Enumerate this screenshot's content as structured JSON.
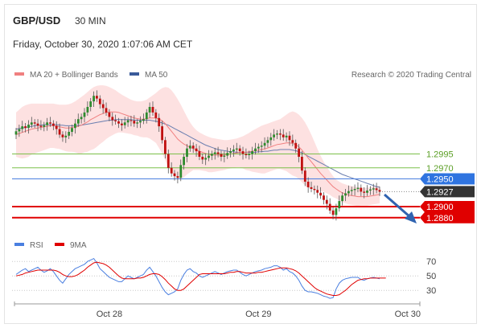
{
  "header": {
    "symbol": "GBP/USD",
    "interval": "30 MIN",
    "datetime": "Friday, October 30, 2020 1:07:06 AM CET",
    "credit": "Research © 2020 Trading Central"
  },
  "legend": {
    "ma20_label": "MA 20 + Bollinger Bands",
    "ma50_label": "MA 50",
    "rsi_label": "RSI",
    "rsi9_label": "9MA"
  },
  "colors": {
    "up": "#2e8b2e",
    "down": "#c01010",
    "ma20": "#f08080",
    "ma50": "#6b7fb0",
    "band": "#fddcdc",
    "support": "#e00000",
    "resistance": "#7cc04a",
    "pivot": "#4a7fe0",
    "current": "#333333",
    "rsi": "#4a7fe0",
    "rsi9": "#e00000"
  },
  "chart_data": {
    "type": "candlestick",
    "y_range": [
      1.2855,
      1.3125
    ],
    "x_labels": [
      {
        "label": "Oct 28",
        "index": 30
      },
      {
        "label": "Oct 29",
        "index": 78
      },
      {
        "label": "Oct 30",
        "index": 126
      }
    ],
    "levels": [
      {
        "value": 1.2995,
        "label": "1.2995",
        "kind": "resistance",
        "line": "thin"
      },
      {
        "value": 1.297,
        "label": "1.2970",
        "kind": "resistance",
        "line": "thin"
      },
      {
        "value": 1.295,
        "label": "1.2950",
        "kind": "pivot",
        "line": "thin"
      },
      {
        "value": 1.2927,
        "label": "1.2927",
        "kind": "current",
        "line": "dotted"
      },
      {
        "value": 1.29,
        "label": "1.2900",
        "kind": "support",
        "line": "thick"
      },
      {
        "value": 1.288,
        "label": "1.2880",
        "kind": "support",
        "line": "thick"
      }
    ],
    "closes": [
      1.3036,
      1.304,
      1.3045,
      1.3042,
      1.3048,
      1.3052,
      1.305,
      1.3046,
      1.3044,
      1.3047,
      1.3052,
      1.305,
      1.3046,
      1.304,
      1.303,
      1.3025,
      1.3028,
      1.3035,
      1.3042,
      1.305,
      1.3058,
      1.3062,
      1.307,
      1.308,
      1.309,
      1.31,
      1.3095,
      1.3085,
      1.3078,
      1.307,
      1.3062,
      1.3056,
      1.3054,
      1.305,
      1.3047,
      1.3052,
      1.3056,
      1.3055,
      1.305,
      1.3052,
      1.3055,
      1.3058,
      1.307,
      1.308,
      1.307,
      1.306,
      1.3045,
      1.302,
      1.2995,
      1.297,
      1.296,
      1.2955,
      1.2952,
      1.2975,
      1.299,
      1.3005,
      1.301,
      1.3005,
      1.3,
      1.299,
      1.2985,
      1.2988,
      1.2992,
      1.2995,
      1.2998,
      1.2995,
      1.299,
      1.2992,
      1.2997,
      1.3,
      1.3003,
      1.3005,
      1.3,
      1.2995,
      1.2993,
      1.2995,
      1.3,
      1.3005,
      1.3008,
      1.301,
      1.3015,
      1.302,
      1.3025,
      1.303,
      1.3032,
      1.303,
      1.3025,
      1.3028,
      1.302,
      1.3015,
      1.3005,
      1.299,
      1.2965,
      1.2945,
      1.2935,
      1.2932,
      1.293,
      1.2925,
      1.292,
      1.2912,
      1.2905,
      1.2893,
      1.2885,
      1.2897,
      1.291,
      1.292,
      1.2924,
      1.2928,
      1.293,
      1.2932,
      1.2934,
      1.2927,
      1.2925,
      1.2929,
      1.2931,
      1.2933,
      1.293,
      1.2927
    ],
    "ma20": [
      1.303,
      1.3032,
      1.3034,
      1.3036,
      1.3038,
      1.304,
      1.3041,
      1.3042,
      1.3043,
      1.3044,
      1.3045,
      1.3046,
      1.3046,
      1.3045,
      1.3044,
      1.3043,
      1.3042,
      1.3042,
      1.3043,
      1.3044,
      1.3045,
      1.3047,
      1.305,
      1.3053,
      1.3057,
      1.306,
      1.3063,
      1.3066,
      1.3068,
      1.307,
      1.3071,
      1.3071,
      1.3071,
      1.307,
      1.3068,
      1.3066,
      1.3064,
      1.3062,
      1.306,
      1.3059,
      1.3058,
      1.3058,
      1.3059,
      1.306,
      1.306,
      1.306,
      1.3058,
      1.3055,
      1.305,
      1.3043,
      1.3036,
      1.3029,
      1.3022,
      1.3017,
      1.3013,
      1.301,
      1.3007,
      1.3005,
      1.3002,
      1.3,
      1.2998,
      1.2996,
      1.2994,
      1.2993,
      1.2993,
      1.2993,
      1.2993,
      1.2993,
      1.2994,
      1.2995,
      1.2996,
      1.2997,
      1.2998,
      1.2998,
      1.2998,
      1.2999,
      1.3,
      1.3001,
      1.3002,
      1.3003,
      1.3004,
      1.3006,
      1.3008,
      1.301,
      1.3012,
      1.3013,
      1.3014,
      1.3015,
      1.3015,
      1.3014,
      1.3012,
      1.3008,
      1.3002,
      1.2995,
      1.2988,
      1.2981,
      1.2974,
      1.2967,
      1.296,
      1.2954,
      1.2948,
      1.2942,
      1.2936,
      1.2932,
      1.2928,
      1.2925,
      1.2923,
      1.2921,
      1.292,
      1.2919,
      1.2918,
      1.2918,
      1.2918,
      1.2918,
      1.2919,
      1.292,
      1.2921,
      1.2922
    ],
    "ma50": [
      1.304,
      1.3041,
      1.3042,
      1.3043,
      1.3044,
      1.3045,
      1.3046,
      1.3047,
      1.3047,
      1.3048,
      1.3048,
      1.3048,
      1.3048,
      1.3048,
      1.3047,
      1.3047,
      1.3046,
      1.3046,
      1.3046,
      1.3046,
      1.3047,
      1.3047,
      1.3048,
      1.3049,
      1.305,
      1.3051,
      1.3052,
      1.3053,
      1.3054,
      1.3055,
      1.3056,
      1.3056,
      1.3057,
      1.3057,
      1.3057,
      1.3057,
      1.3057,
      1.3057,
      1.3056,
      1.3056,
      1.3056,
      1.3056,
      1.3056,
      1.3056,
      1.3055,
      1.3054,
      1.3053,
      1.3051,
      1.3049,
      1.3047,
      1.3044,
      1.3041,
      1.3038,
      1.3035,
      1.3032,
      1.3029,
      1.3026,
      1.3023,
      1.302,
      1.3017,
      1.3014,
      1.3011,
      1.3009,
      1.3007,
      1.3005,
      1.3003,
      1.3002,
      1.3001,
      1.3,
      1.2999,
      1.2999,
      1.2998,
      1.2998,
      1.2998,
      1.2998,
      1.2998,
      1.2998,
      1.2998,
      1.2999,
      1.2999,
      1.3,
      1.3,
      1.3001,
      1.3002,
      1.3002,
      1.3003,
      1.3003,
      1.3003,
      1.3003,
      1.3002,
      1.3001,
      1.2999,
      1.2997,
      1.2994,
      1.2991,
      1.2988,
      1.2985,
      1.2982,
      1.2979,
      1.2976,
      1.2973,
      1.297,
      1.2967,
      1.2964,
      1.2961,
      1.2958,
      1.2956,
      1.2954,
      1.2952,
      1.295,
      1.2948,
      1.2946,
      1.2944,
      1.2942,
      1.294,
      1.2938,
      1.2936,
      1.2935
    ],
    "bb_upper": [
      1.307,
      1.3075,
      1.308,
      1.3083,
      1.3085,
      1.3086,
      1.3086,
      1.3086,
      1.3086,
      1.3086,
      1.3086,
      1.3086,
      1.3086,
      1.3085,
      1.3084,
      1.3084,
      1.3084,
      1.3085,
      1.3087,
      1.309,
      1.3094,
      1.3098,
      1.3102,
      1.3107,
      1.3112,
      1.3116,
      1.3118,
      1.3119,
      1.3119,
      1.3118,
      1.3116,
      1.3113,
      1.311,
      1.3106,
      1.3102,
      1.3099,
      1.3096,
      1.3093,
      1.3091,
      1.309,
      1.309,
      1.3091,
      1.3093,
      1.3097,
      1.3101,
      1.3105,
      1.311,
      1.3114,
      1.3116,
      1.3115,
      1.311,
      1.3103,
      1.3094,
      1.3084,
      1.3073,
      1.3062,
      1.3052,
      1.3044,
      1.3038,
      1.3034,
      1.3031,
      1.3028,
      1.3026,
      1.3024,
      1.3023,
      1.3022,
      1.3021,
      1.302,
      1.302,
      1.3021,
      1.3022,
      1.3023,
      1.3025,
      1.3027,
      1.303,
      1.3033,
      1.3037,
      1.304,
      1.3043,
      1.3046,
      1.3048,
      1.305,
      1.3052,
      1.3054,
      1.3056,
      1.3058,
      1.3062,
      1.3066,
      1.307,
      1.3072,
      1.307,
      1.3066,
      1.306,
      1.3052,
      1.3042,
      1.303,
      1.3017,
      1.3004,
      1.2992,
      1.2981,
      1.2972,
      1.2963,
      1.2955,
      1.2949,
      1.2945,
      1.2942,
      1.294,
      1.2938,
      1.2937,
      1.2936,
      1.2935,
      1.2934,
      1.2934,
      1.2934,
      1.2935,
      1.2936,
      1.2937,
      1.2938
    ],
    "bb_lower": [
      1.299,
      1.2988,
      1.2987,
      1.2988,
      1.299,
      1.2994,
      1.2996,
      1.2998,
      1.3,
      1.3002,
      1.3004,
      1.3006,
      1.3006,
      1.3005,
      1.3004,
      1.3002,
      1.3,
      1.2999,
      1.2999,
      1.2998,
      1.2996,
      1.2996,
      1.2998,
      1.2999,
      1.3002,
      1.3004,
      1.3008,
      1.3013,
      1.3017,
      1.3022,
      1.3026,
      1.3029,
      1.3032,
      1.3034,
      1.3034,
      1.3033,
      1.3032,
      1.3031,
      1.3029,
      1.3028,
      1.3026,
      1.3025,
      1.3025,
      1.3023,
      1.3019,
      1.3015,
      1.3006,
      1.2996,
      1.2984,
      1.2971,
      1.2962,
      1.2955,
      1.295,
      1.295,
      1.2953,
      1.2958,
      1.2962,
      1.2966,
      1.2966,
      1.2966,
      1.2965,
      1.2964,
      1.2962,
      1.2962,
      1.2963,
      1.2964,
      1.2965,
      1.2966,
      1.2968,
      1.2969,
      1.297,
      1.2971,
      1.2971,
      1.2969,
      1.2966,
      1.2965,
      1.2963,
      1.2962,
      1.2961,
      1.296,
      1.296,
      1.2962,
      1.2964,
      1.2966,
      1.2968,
      1.2968,
      1.2966,
      1.2964,
      1.296,
      1.2956,
      1.2954,
      1.295,
      1.2944,
      1.2938,
      1.2934,
      1.2932,
      1.2931,
      1.293,
      1.2928,
      1.2927,
      1.2924,
      1.2921,
      1.2917,
      1.2915,
      1.2911,
      1.2908,
      1.2906,
      1.2904,
      1.2903,
      1.2902,
      1.2901,
      1.2902,
      1.2902,
      1.2902,
      1.2903,
      1.2904,
      1.2905,
      1.2906
    ],
    "rsi": {
      "ticks": [
        70,
        50,
        30
      ],
      "y_range": [
        18,
        78
      ],
      "rsi": [
        52,
        55,
        58,
        60,
        56,
        58,
        60,
        62,
        58,
        55,
        57,
        60,
        56,
        50,
        44,
        40,
        46,
        52,
        56,
        60,
        62,
        64,
        66,
        70,
        72,
        74,
        68,
        60,
        56,
        52,
        48,
        46,
        44,
        42,
        42,
        46,
        50,
        48,
        46,
        48,
        50,
        52,
        58,
        62,
        56,
        50,
        42,
        34,
        28,
        24,
        26,
        28,
        32,
        44,
        52,
        58,
        60,
        56,
        54,
        50,
        48,
        50,
        52,
        54,
        56,
        54,
        52,
        54,
        56,
        57,
        58,
        58,
        55,
        52,
        50,
        52,
        54,
        56,
        57,
        58,
        60,
        61,
        62,
        64,
        64,
        62,
        58,
        60,
        56,
        54,
        50,
        44,
        36,
        30,
        28,
        28,
        27,
        26,
        24,
        22,
        21,
        19,
        20,
        32,
        40,
        44,
        46,
        47,
        48,
        48,
        48,
        45,
        44,
        46,
        47,
        48,
        47,
        46
      ],
      "ma9": [
        50,
        51,
        52,
        54,
        55,
        56,
        57,
        58,
        58,
        58,
        58,
        58,
        58,
        57,
        55,
        52,
        50,
        49,
        49,
        50,
        52,
        55,
        58,
        62,
        65,
        68,
        69,
        68,
        67,
        65,
        62,
        58,
        54,
        50,
        47,
        46,
        46,
        46,
        46,
        47,
        47,
        48,
        50,
        52,
        53,
        53,
        52,
        49,
        45,
        40,
        36,
        32,
        30,
        30,
        32,
        36,
        40,
        44,
        48,
        52,
        53,
        53,
        53,
        53,
        53,
        53,
        53,
        53,
        54,
        55,
        55,
        56,
        56,
        55,
        54,
        54,
        54,
        54,
        55,
        55,
        56,
        57,
        58,
        59,
        60,
        61,
        61,
        61,
        60,
        59,
        57,
        54,
        50,
        46,
        42,
        38,
        34,
        31,
        29,
        27,
        25,
        24,
        23,
        23,
        24,
        27,
        30,
        34,
        38,
        41,
        44,
        45,
        46,
        46,
        47,
        47,
        47,
        47,
        47,
        47
      ]
    }
  }
}
